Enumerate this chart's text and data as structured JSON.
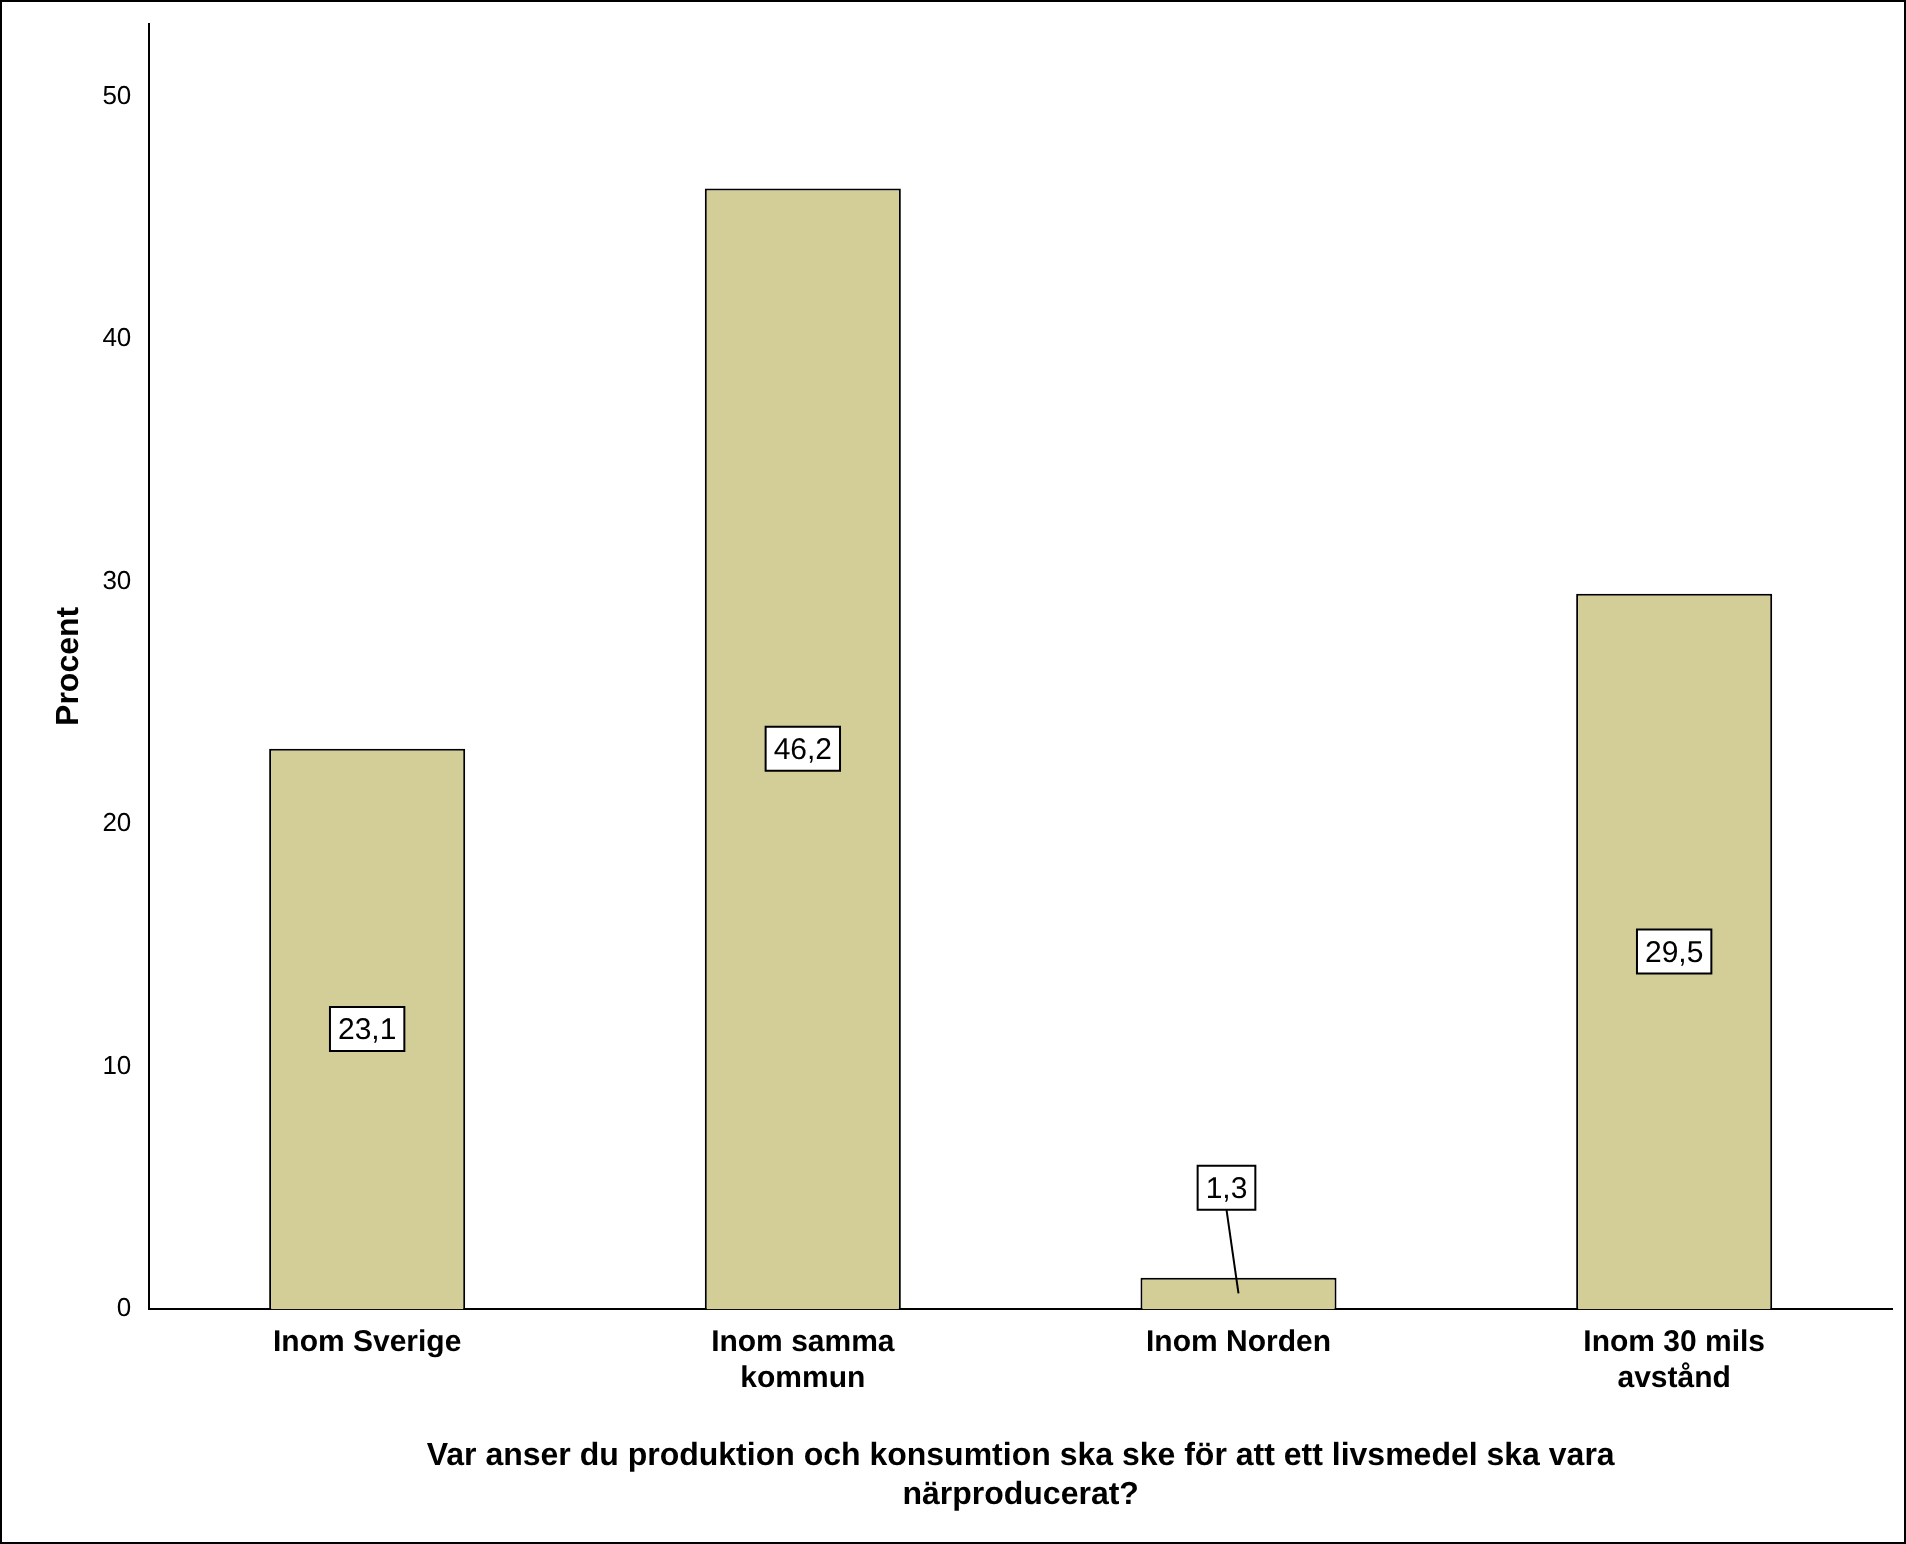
{
  "chart_data": {
    "type": "bar",
    "xlabel": "Var anser du produktion och konsumtion ska ske för att ett livsmedel ska vara närproducerat?",
    "ylabel": "Procent",
    "categories": [
      "Inom Sverige",
      "Inom samma kommun",
      "Inom Norden",
      "Inom 30 mils avstånd"
    ],
    "values": [
      23.1,
      46.2,
      1.3,
      29.5
    ],
    "value_labels": [
      "23,1",
      "46,2",
      "1,3",
      "29,5"
    ],
    "color": "#d3ce98",
    "ylim": [
      0,
      53
    ],
    "yticks": [
      0,
      10,
      20,
      30,
      40,
      50
    ],
    "grid": false,
    "legend": false
  }
}
